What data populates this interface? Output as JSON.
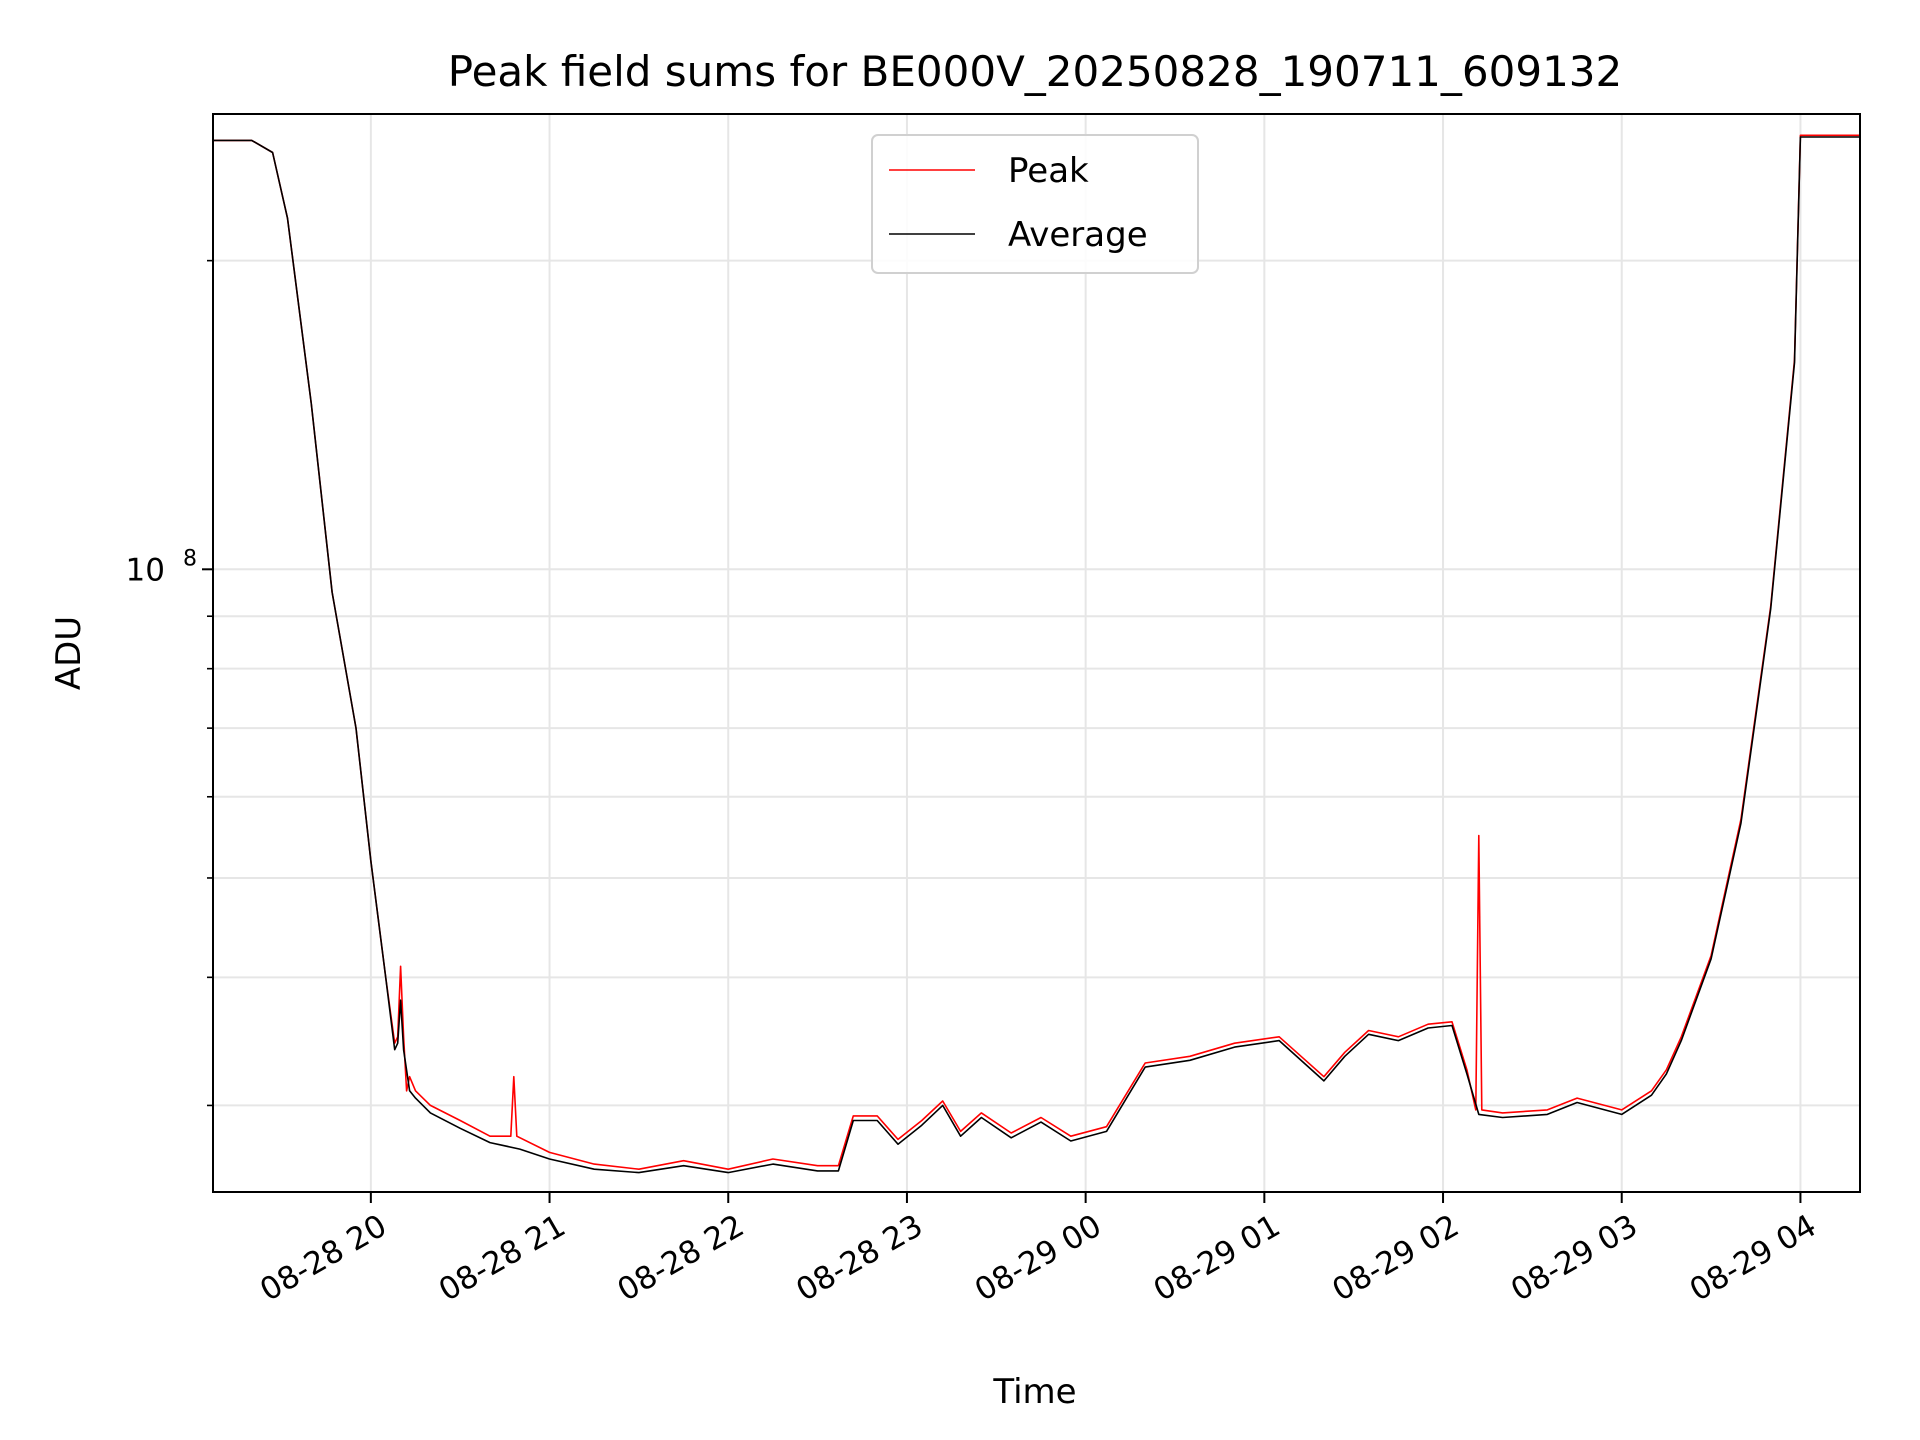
{
  "chart_data": {
    "type": "line",
    "title": "Peak field sums for BE000V_20250828_190711_609132",
    "xlabel": "Time",
    "ylabel": "ADU",
    "y_scale": "log",
    "ylim": [
      24700000,
      278000000
    ],
    "xlim": [
      "2025-08-28 19:07",
      "2025-08-29 04:20"
    ],
    "grid": true,
    "legend_placement": "top-center",
    "x_tick_labels": [
      "08-28 20",
      "08-28 21",
      "08-28 22",
      "08-28 23",
      "08-29 00",
      "08-29 01",
      "08-29 02",
      "08-29 03",
      "08-29 04"
    ],
    "x_ticks": [
      "2025-08-28 20:00",
      "2025-08-28 21:00",
      "2025-08-28 22:00",
      "2025-08-28 23:00",
      "2025-08-29 00:00",
      "2025-08-29 01:00",
      "2025-08-29 02:00",
      "2025-08-29 03:00",
      "2025-08-29 04:00"
    ],
    "y_major_tick": {
      "value": 100000000,
      "label_base": "10",
      "label_exp": "8"
    },
    "y_minor_ticks": [
      30000000,
      40000000,
      50000000,
      60000000,
      70000000,
      80000000,
      90000000,
      200000000
    ],
    "series": [
      {
        "name": "Peak",
        "color": "#ff0000",
        "x": [
          "2025-08-28 19:07",
          "2025-08-28 19:20",
          "2025-08-28 19:27",
          "2025-08-28 19:32",
          "2025-08-28 19:40",
          "2025-08-28 19:47",
          "2025-08-28 19:55",
          "2025-08-28 20:00",
          "2025-08-28 20:05",
          "2025-08-28 20:08",
          "2025-08-28 20:09",
          "2025-08-28 20:10",
          "2025-08-28 20:11",
          "2025-08-28 20:12",
          "2025-08-28 20:13",
          "2025-08-28 20:15",
          "2025-08-28 20:20",
          "2025-08-28 20:30",
          "2025-08-28 20:40",
          "2025-08-28 20:47",
          "2025-08-28 20:48",
          "2025-08-28 20:49",
          "2025-08-28 21:00",
          "2025-08-28 21:15",
          "2025-08-28 21:30",
          "2025-08-28 21:45",
          "2025-08-28 22:00",
          "2025-08-28 22:15",
          "2025-08-28 22:30",
          "2025-08-28 22:37",
          "2025-08-28 22:42",
          "2025-08-28 22:50",
          "2025-08-28 22:57",
          "2025-08-28 23:05",
          "2025-08-28 23:12",
          "2025-08-28 23:18",
          "2025-08-28 23:25",
          "2025-08-28 23:35",
          "2025-08-28 23:45",
          "2025-08-28 23:55",
          "2025-08-29 00:07",
          "2025-08-29 00:20",
          "2025-08-29 00:35",
          "2025-08-29 00:50",
          "2025-08-29 01:05",
          "2025-08-29 01:20",
          "2025-08-29 01:27",
          "2025-08-29 01:35",
          "2025-08-29 01:45",
          "2025-08-29 01:55",
          "2025-08-29 02:03",
          "2025-08-29 02:08",
          "2025-08-29 02:11",
          "2025-08-29 02:12",
          "2025-08-29 02:13",
          "2025-08-29 02:20",
          "2025-08-29 02:35",
          "2025-08-29 02:45",
          "2025-08-29 03:00",
          "2025-08-29 03:10",
          "2025-08-29 03:15",
          "2025-08-29 03:20",
          "2025-08-29 03:30",
          "2025-08-29 03:40",
          "2025-08-29 03:50",
          "2025-08-29 03:58",
          "2025-08-29 04:00",
          "2025-08-29 04:20"
        ],
        "values": [
          262000000,
          262000000,
          255000000,
          220000000,
          145000000,
          95000000,
          70000000,
          52000000,
          40000000,
          34500000,
          35000000,
          41000000,
          35000000,
          31000000,
          32000000,
          31000000,
          30000000,
          29000000,
          28000000,
          28000000,
          32000000,
          28000000,
          27000000,
          26300000,
          26000000,
          26500000,
          26000000,
          26600000,
          26200000,
          26200000,
          29300000,
          29300000,
          27800000,
          29000000,
          30300000,
          28300000,
          29500000,
          28200000,
          29200000,
          28000000,
          28600000,
          33000000,
          33500000,
          34500000,
          35000000,
          32000000,
          33800000,
          35500000,
          35000000,
          36000000,
          36200000,
          32500000,
          29700000,
          55000000,
          29700000,
          29500000,
          29700000,
          30500000,
          29700000,
          31000000,
          32500000,
          35000000,
          42000000,
          57000000,
          92000000,
          160000000,
          265000000,
          265000000
        ]
      },
      {
        "name": "Average",
        "color": "#000000",
        "x": [
          "2025-08-28 19:07",
          "2025-08-28 19:20",
          "2025-08-28 19:27",
          "2025-08-28 19:32",
          "2025-08-28 19:40",
          "2025-08-28 19:47",
          "2025-08-28 19:55",
          "2025-08-28 20:00",
          "2025-08-28 20:05",
          "2025-08-28 20:08",
          "2025-08-28 20:09",
          "2025-08-28 20:10",
          "2025-08-28 20:11",
          "2025-08-28 20:13",
          "2025-08-28 20:15",
          "2025-08-28 20:20",
          "2025-08-28 20:30",
          "2025-08-28 20:40",
          "2025-08-28 20:50",
          "2025-08-28 21:00",
          "2025-08-28 21:15",
          "2025-08-28 21:30",
          "2025-08-28 21:45",
          "2025-08-28 22:00",
          "2025-08-28 22:15",
          "2025-08-28 22:30",
          "2025-08-28 22:37",
          "2025-08-28 22:42",
          "2025-08-28 22:50",
          "2025-08-28 22:57",
          "2025-08-28 23:05",
          "2025-08-28 23:12",
          "2025-08-28 23:18",
          "2025-08-28 23:25",
          "2025-08-28 23:35",
          "2025-08-28 23:45",
          "2025-08-28 23:55",
          "2025-08-29 00:07",
          "2025-08-29 00:20",
          "2025-08-29 00:35",
          "2025-08-29 00:50",
          "2025-08-29 01:05",
          "2025-08-29 01:20",
          "2025-08-29 01:27",
          "2025-08-29 01:35",
          "2025-08-29 01:45",
          "2025-08-29 01:55",
          "2025-08-29 02:03",
          "2025-08-29 02:08",
          "2025-08-29 02:12",
          "2025-08-29 02:20",
          "2025-08-29 02:35",
          "2025-08-29 02:45",
          "2025-08-29 03:00",
          "2025-08-29 03:10",
          "2025-08-29 03:15",
          "2025-08-29 03:20",
          "2025-08-29 03:30",
          "2025-08-29 03:40",
          "2025-08-29 03:50",
          "2025-08-29 03:58",
          "2025-08-29 04:00",
          "2025-08-29 04:20"
        ],
        "values": [
          262000000,
          262000000,
          255000000,
          220000000,
          145000000,
          95000000,
          70000000,
          52000000,
          40000000,
          34000000,
          34500000,
          38000000,
          34000000,
          31000000,
          30500000,
          29500000,
          28500000,
          27600000,
          27200000,
          26600000,
          26000000,
          25800000,
          26200000,
          25800000,
          26300000,
          25900000,
          25900000,
          29000000,
          29000000,
          27500000,
          28700000,
          30000000,
          28000000,
          29200000,
          27900000,
          28900000,
          27700000,
          28300000,
          32700000,
          33200000,
          34200000,
          34700000,
          31700000,
          33500000,
          35200000,
          34700000,
          35700000,
          35900000,
          32200000,
          29400000,
          29200000,
          29400000,
          30200000,
          29400000,
          30700000,
          32200000,
          34700000,
          41700000,
          56500000,
          91500000,
          159000000,
          264000000,
          264000000
        ]
      }
    ]
  }
}
